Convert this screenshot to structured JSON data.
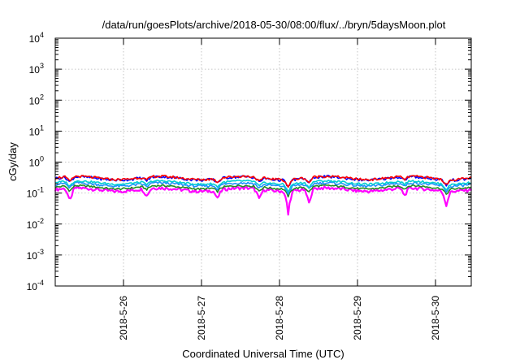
{
  "chart_data": {
    "type": "line",
    "title": "/data/run/goesPlots/archive/2018-05-30/08:00/flux/../bryn/5daysMoon.plot",
    "xlabel": "Coordinated Universal Time (UTC)",
    "ylabel": "cGy/day",
    "yscale": "log",
    "ylim": [
      0.0001,
      10000
    ],
    "xlim": [
      "2018-05-25 03:00",
      "2018-05-30 11:00"
    ],
    "grid": true,
    "x_ticks": [
      "2018-5-26",
      "2018-5-27",
      "2018-5-28",
      "2018-5-29",
      "2018-5-30"
    ],
    "y_ticks": [
      {
        "value": 0.0001,
        "mantissa": "10",
        "exp": "-4"
      },
      {
        "value": 0.001,
        "mantissa": "10",
        "exp": "-3"
      },
      {
        "value": 0.01,
        "mantissa": "10",
        "exp": "-2"
      },
      {
        "value": 0.1,
        "mantissa": "10",
        "exp": "-1"
      },
      {
        "value": 1,
        "mantissa": "10",
        "exp": "0"
      },
      {
        "value": 10,
        "mantissa": "10",
        "exp": "1"
      },
      {
        "value": 100,
        "mantissa": "10",
        "exp": "2"
      },
      {
        "value": 1000,
        "mantissa": "10",
        "exp": "3"
      },
      {
        "value": 10000,
        "mantissa": "10",
        "exp": "4"
      }
    ],
    "series": [
      {
        "color": "#ff00ff",
        "base": 0.13,
        "swing": 0.12
      },
      {
        "color": "#228b22",
        "base": 0.155,
        "swing": 0.07
      },
      {
        "color": "#1e90ff",
        "base": 0.19,
        "swing": 0.09
      },
      {
        "color": "#00ced1",
        "base": 0.22,
        "swing": 0.07
      },
      {
        "color": "#0000ff",
        "base": 0.3,
        "swing": 0.1
      },
      {
        "color": "#ff0000",
        "base": 0.31,
        "swing": 0.09
      }
    ]
  }
}
